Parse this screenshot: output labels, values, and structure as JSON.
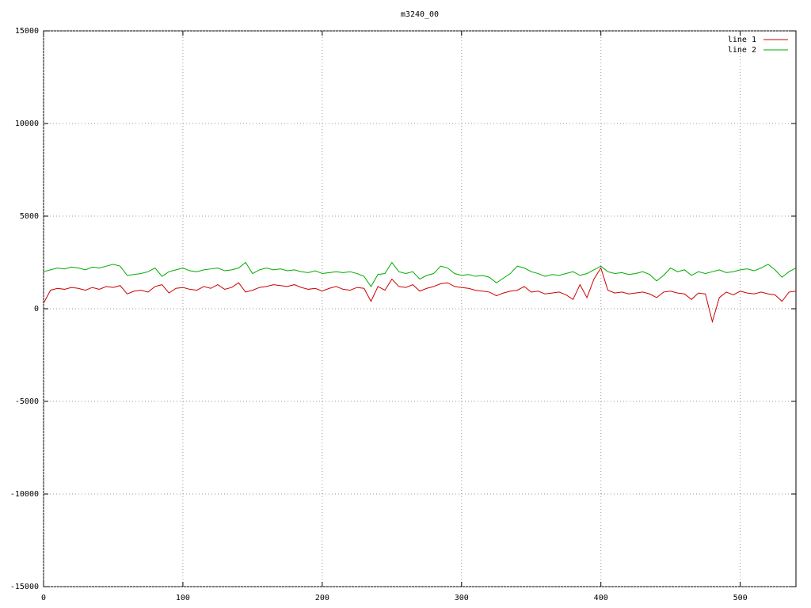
{
  "chart_data": {
    "type": "line",
    "title": "m3240_00",
    "x": [
      0,
      5,
      10,
      15,
      20,
      25,
      30,
      35,
      40,
      45,
      50,
      55,
      60,
      65,
      70,
      75,
      80,
      85,
      90,
      95,
      100,
      105,
      110,
      115,
      120,
      125,
      130,
      135,
      140,
      145,
      150,
      155,
      160,
      165,
      170,
      175,
      180,
      185,
      190,
      195,
      200,
      205,
      210,
      215,
      220,
      225,
      230,
      235,
      240,
      245,
      250,
      255,
      260,
      265,
      270,
      275,
      280,
      285,
      290,
      295,
      300,
      305,
      310,
      315,
      320,
      325,
      330,
      335,
      340,
      345,
      350,
      355,
      360,
      365,
      370,
      375,
      380,
      385,
      390,
      395,
      400,
      405,
      410,
      415,
      420,
      425,
      430,
      435,
      440,
      445,
      450,
      455,
      460,
      465,
      470,
      475,
      480,
      485,
      490,
      495,
      500,
      505,
      510,
      515,
      520,
      525,
      530,
      535,
      540
    ],
    "series": [
      {
        "name": "line 1",
        "color": "#cc0000",
        "values": [
          300,
          1000,
          1100,
          1050,
          1150,
          1100,
          1000,
          1150,
          1050,
          1200,
          1150,
          1250,
          800,
          950,
          1000,
          900,
          1200,
          1300,
          850,
          1100,
          1150,
          1050,
          1000,
          1200,
          1100,
          1300,
          1050,
          1150,
          1400,
          900,
          1000,
          1150,
          1200,
          1300,
          1250,
          1200,
          1300,
          1150,
          1050,
          1100,
          950,
          1100,
          1200,
          1050,
          1000,
          1150,
          1100,
          400,
          1200,
          1000,
          1600,
          1200,
          1150,
          1300,
          950,
          1100,
          1200,
          1350,
          1400,
          1200,
          1150,
          1100,
          1000,
          950,
          900,
          700,
          850,
          950,
          1000,
          1200,
          900,
          950,
          800,
          850,
          900,
          750,
          500,
          1300,
          600,
          1600,
          2200,
          1000,
          850,
          900,
          800,
          850,
          900,
          800,
          600,
          900,
          950,
          850,
          800,
          500,
          850,
          800,
          -700,
          600,
          900,
          750,
          950,
          850,
          800,
          900,
          800,
          750,
          400,
          900,
          950
        ]
      },
      {
        "name": "line 2",
        "color": "#00aa00",
        "values": [
          2000,
          2100,
          2200,
          2150,
          2250,
          2200,
          2100,
          2250,
          2200,
          2300,
          2400,
          2300,
          1800,
          1850,
          1900,
          2000,
          2200,
          1750,
          2000,
          2100,
          2200,
          2050,
          2000,
          2100,
          2150,
          2200,
          2050,
          2100,
          2200,
          2500,
          1900,
          2100,
          2200,
          2100,
          2150,
          2050,
          2100,
          2000,
          1950,
          2050,
          1900,
          1950,
          2000,
          1950,
          2000,
          1900,
          1750,
          1200,
          1850,
          1900,
          2500,
          2000,
          1900,
          2000,
          1600,
          1800,
          1900,
          2300,
          2200,
          1900,
          1800,
          1850,
          1750,
          1800,
          1700,
          1400,
          1650,
          1900,
          2300,
          2200,
          2000,
          1900,
          1750,
          1850,
          1800,
          1900,
          2000,
          1800,
          1900,
          2100,
          2300,
          2000,
          1900,
          1950,
          1850,
          1900,
          2000,
          1850,
          1500,
          1800,
          2200,
          2000,
          2100,
          1800,
          2000,
          1900,
          2000,
          2100,
          1950,
          2000,
          2100,
          2150,
          2050,
          2200,
          2400,
          2100,
          1700,
          2000,
          2200
        ]
      }
    ],
    "xlim": [
      0,
      540
    ],
    "xticks": [
      0,
      100,
      200,
      300,
      400,
      500
    ],
    "ylim": [
      -15000,
      15000
    ],
    "yticks": [
      -15000,
      -10000,
      -5000,
      0,
      5000,
      10000,
      15000
    ],
    "grid": true,
    "legend": "top-right"
  }
}
